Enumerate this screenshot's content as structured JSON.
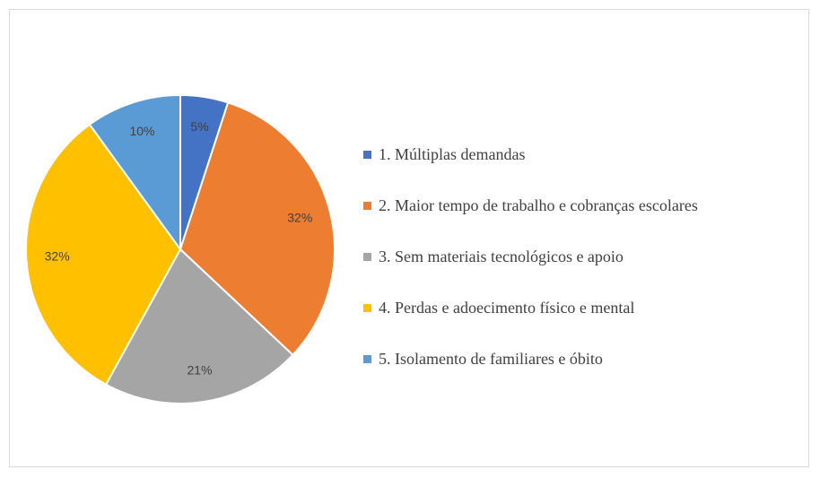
{
  "chart_data": {
    "type": "pie",
    "categories": [
      "1. Múltiplas demandas",
      "2. Maior tempo de trabalho e cobranças escolares",
      "3. Sem materiais tecnológicos e apoio",
      "4. Perdas e adoecimento físico e mental",
      "5. Isolamento de familiares e óbito"
    ],
    "values": [
      5,
      32,
      21,
      32,
      10
    ],
    "data_labels": [
      "5%",
      "32%",
      "21%",
      "32%",
      "10%"
    ],
    "colors": [
      "#4472C4",
      "#ED7D31",
      "#A5A5A5",
      "#FFC000",
      "#5B9BD5"
    ],
    "legend_position": "right",
    "title": ""
  }
}
